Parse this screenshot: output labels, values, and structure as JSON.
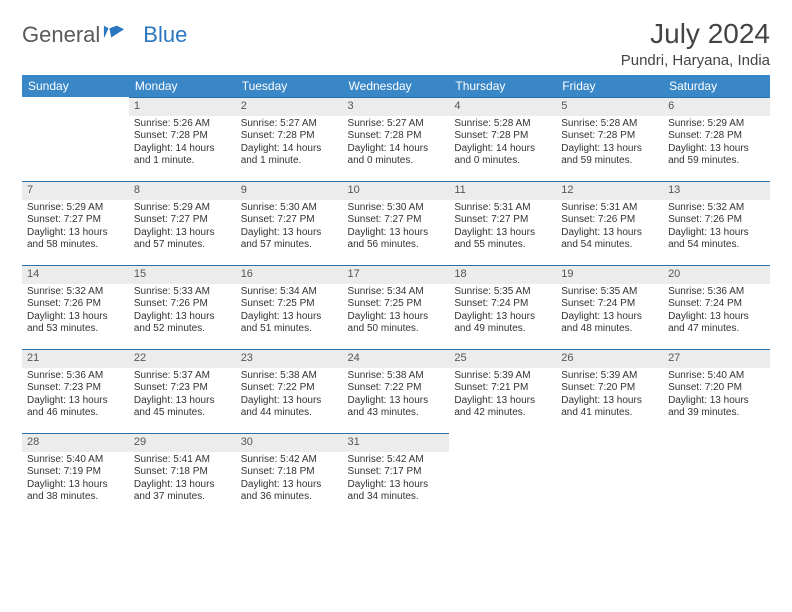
{
  "brand": {
    "part1": "General",
    "part2": "Blue"
  },
  "title": "July 2024",
  "location": "Pundri, Haryana, India",
  "colors": {
    "header_bg": "#3a87c8",
    "header_text": "#ffffff",
    "daynum_bg": "#ececec",
    "daynum_border": "#2a6fa8",
    "text": "#333333",
    "brand_gray": "#5a5a5a",
    "brand_blue": "#2a77c0",
    "page_bg": "#ffffff"
  },
  "fonts": {
    "title_size_pt": 21,
    "location_size_pt": 11,
    "header_size_pt": 9,
    "cell_size_pt": 7.5
  },
  "weekdays": [
    "Sunday",
    "Monday",
    "Tuesday",
    "Wednesday",
    "Thursday",
    "Friday",
    "Saturday"
  ],
  "weeks": [
    [
      null,
      {
        "n": "1",
        "sr": "Sunrise: 5:26 AM",
        "ss": "Sunset: 7:28 PM",
        "d1": "Daylight: 14 hours",
        "d2": "and 1 minute."
      },
      {
        "n": "2",
        "sr": "Sunrise: 5:27 AM",
        "ss": "Sunset: 7:28 PM",
        "d1": "Daylight: 14 hours",
        "d2": "and 1 minute."
      },
      {
        "n": "3",
        "sr": "Sunrise: 5:27 AM",
        "ss": "Sunset: 7:28 PM",
        "d1": "Daylight: 14 hours",
        "d2": "and 0 minutes."
      },
      {
        "n": "4",
        "sr": "Sunrise: 5:28 AM",
        "ss": "Sunset: 7:28 PM",
        "d1": "Daylight: 14 hours",
        "d2": "and 0 minutes."
      },
      {
        "n": "5",
        "sr": "Sunrise: 5:28 AM",
        "ss": "Sunset: 7:28 PM",
        "d1": "Daylight: 13 hours",
        "d2": "and 59 minutes."
      },
      {
        "n": "6",
        "sr": "Sunrise: 5:29 AM",
        "ss": "Sunset: 7:28 PM",
        "d1": "Daylight: 13 hours",
        "d2": "and 59 minutes."
      }
    ],
    [
      {
        "n": "7",
        "sr": "Sunrise: 5:29 AM",
        "ss": "Sunset: 7:27 PM",
        "d1": "Daylight: 13 hours",
        "d2": "and 58 minutes."
      },
      {
        "n": "8",
        "sr": "Sunrise: 5:29 AM",
        "ss": "Sunset: 7:27 PM",
        "d1": "Daylight: 13 hours",
        "d2": "and 57 minutes."
      },
      {
        "n": "9",
        "sr": "Sunrise: 5:30 AM",
        "ss": "Sunset: 7:27 PM",
        "d1": "Daylight: 13 hours",
        "d2": "and 57 minutes."
      },
      {
        "n": "10",
        "sr": "Sunrise: 5:30 AM",
        "ss": "Sunset: 7:27 PM",
        "d1": "Daylight: 13 hours",
        "d2": "and 56 minutes."
      },
      {
        "n": "11",
        "sr": "Sunrise: 5:31 AM",
        "ss": "Sunset: 7:27 PM",
        "d1": "Daylight: 13 hours",
        "d2": "and 55 minutes."
      },
      {
        "n": "12",
        "sr": "Sunrise: 5:31 AM",
        "ss": "Sunset: 7:26 PM",
        "d1": "Daylight: 13 hours",
        "d2": "and 54 minutes."
      },
      {
        "n": "13",
        "sr": "Sunrise: 5:32 AM",
        "ss": "Sunset: 7:26 PM",
        "d1": "Daylight: 13 hours",
        "d2": "and 54 minutes."
      }
    ],
    [
      {
        "n": "14",
        "sr": "Sunrise: 5:32 AM",
        "ss": "Sunset: 7:26 PM",
        "d1": "Daylight: 13 hours",
        "d2": "and 53 minutes."
      },
      {
        "n": "15",
        "sr": "Sunrise: 5:33 AM",
        "ss": "Sunset: 7:26 PM",
        "d1": "Daylight: 13 hours",
        "d2": "and 52 minutes."
      },
      {
        "n": "16",
        "sr": "Sunrise: 5:34 AM",
        "ss": "Sunset: 7:25 PM",
        "d1": "Daylight: 13 hours",
        "d2": "and 51 minutes."
      },
      {
        "n": "17",
        "sr": "Sunrise: 5:34 AM",
        "ss": "Sunset: 7:25 PM",
        "d1": "Daylight: 13 hours",
        "d2": "and 50 minutes."
      },
      {
        "n": "18",
        "sr": "Sunrise: 5:35 AM",
        "ss": "Sunset: 7:24 PM",
        "d1": "Daylight: 13 hours",
        "d2": "and 49 minutes."
      },
      {
        "n": "19",
        "sr": "Sunrise: 5:35 AM",
        "ss": "Sunset: 7:24 PM",
        "d1": "Daylight: 13 hours",
        "d2": "and 48 minutes."
      },
      {
        "n": "20",
        "sr": "Sunrise: 5:36 AM",
        "ss": "Sunset: 7:24 PM",
        "d1": "Daylight: 13 hours",
        "d2": "and 47 minutes."
      }
    ],
    [
      {
        "n": "21",
        "sr": "Sunrise: 5:36 AM",
        "ss": "Sunset: 7:23 PM",
        "d1": "Daylight: 13 hours",
        "d2": "and 46 minutes."
      },
      {
        "n": "22",
        "sr": "Sunrise: 5:37 AM",
        "ss": "Sunset: 7:23 PM",
        "d1": "Daylight: 13 hours",
        "d2": "and 45 minutes."
      },
      {
        "n": "23",
        "sr": "Sunrise: 5:38 AM",
        "ss": "Sunset: 7:22 PM",
        "d1": "Daylight: 13 hours",
        "d2": "and 44 minutes."
      },
      {
        "n": "24",
        "sr": "Sunrise: 5:38 AM",
        "ss": "Sunset: 7:22 PM",
        "d1": "Daylight: 13 hours",
        "d2": "and 43 minutes."
      },
      {
        "n": "25",
        "sr": "Sunrise: 5:39 AM",
        "ss": "Sunset: 7:21 PM",
        "d1": "Daylight: 13 hours",
        "d2": "and 42 minutes."
      },
      {
        "n": "26",
        "sr": "Sunrise: 5:39 AM",
        "ss": "Sunset: 7:20 PM",
        "d1": "Daylight: 13 hours",
        "d2": "and 41 minutes."
      },
      {
        "n": "27",
        "sr": "Sunrise: 5:40 AM",
        "ss": "Sunset: 7:20 PM",
        "d1": "Daylight: 13 hours",
        "d2": "and 39 minutes."
      }
    ],
    [
      {
        "n": "28",
        "sr": "Sunrise: 5:40 AM",
        "ss": "Sunset: 7:19 PM",
        "d1": "Daylight: 13 hours",
        "d2": "and 38 minutes."
      },
      {
        "n": "29",
        "sr": "Sunrise: 5:41 AM",
        "ss": "Sunset: 7:18 PM",
        "d1": "Daylight: 13 hours",
        "d2": "and 37 minutes."
      },
      {
        "n": "30",
        "sr": "Sunrise: 5:42 AM",
        "ss": "Sunset: 7:18 PM",
        "d1": "Daylight: 13 hours",
        "d2": "and 36 minutes."
      },
      {
        "n": "31",
        "sr": "Sunrise: 5:42 AM",
        "ss": "Sunset: 7:17 PM",
        "d1": "Daylight: 13 hours",
        "d2": "and 34 minutes."
      },
      null,
      null,
      null
    ]
  ]
}
